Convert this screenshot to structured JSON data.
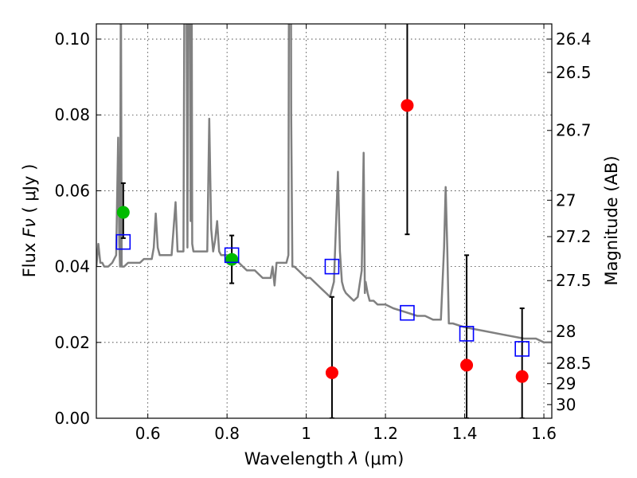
{
  "chart_data": {
    "type": "scatter",
    "xlabel": "Wavelength",
    "xlabel_symbol": "λ",
    "xlabel_unit": "(μm)",
    "ylabel": "Flux",
    "ylabel_symbol": "Fν",
    "ylabel_unit": "( μJy )",
    "ylabel_right": "Magnitude (AB)",
    "xlim": [
      0.47,
      1.62
    ],
    "ylim": [
      0.0,
      0.104
    ],
    "x_ticks": [
      0.6,
      0.8,
      1.0,
      1.2,
      1.4,
      1.6
    ],
    "x_tick_labels": [
      "0.6",
      "0.8",
      "1",
      "1.2",
      "1.4",
      "1.6"
    ],
    "y_ticks": [
      0.0,
      0.02,
      0.04,
      0.06,
      0.08,
      0.1
    ],
    "y_tick_labels": [
      "0.00",
      "0.02",
      "0.04",
      "0.06",
      "0.08",
      "0.10"
    ],
    "right_ticks": [
      {
        "label": "26.4",
        "flux": 0.1
      },
      {
        "label": "26.5",
        "flux": 0.0912
      },
      {
        "label": "26.7",
        "flux": 0.0759
      },
      {
        "label": "27",
        "flux": 0.0575
      },
      {
        "label": "27.2",
        "flux": 0.0479
      },
      {
        "label": "27.5",
        "flux": 0.0363
      },
      {
        "label": "28",
        "flux": 0.0229
      },
      {
        "label": "28.5",
        "flux": 0.0145
      },
      {
        "label": "29",
        "flux": 0.0091
      },
      {
        "label": "30",
        "flux": 0.0036
      }
    ],
    "grid": true,
    "colors": {
      "spectrum": "#808080",
      "red_points": "#ff0000",
      "green_points": "#00bb00",
      "model_squares": "#0000ff",
      "errorbars": "#000000"
    },
    "series": [
      {
        "kind": "line",
        "x": [
          0.47,
          0.475,
          0.48,
          0.485,
          0.49,
          0.5,
          0.51,
          0.515,
          0.52,
          0.525,
          0.528,
          0.53,
          0.532,
          0.534,
          0.54,
          0.55,
          0.56,
          0.57,
          0.58,
          0.59,
          0.6,
          0.61,
          0.615,
          0.62,
          0.625,
          0.63,
          0.64,
          0.65,
          0.66,
          0.665,
          0.67,
          0.675,
          0.68,
          0.69,
          0.695,
          0.7,
          0.705,
          0.708,
          0.71,
          0.712,
          0.715,
          0.72,
          0.725,
          0.73,
          0.74,
          0.75,
          0.755,
          0.76,
          0.765,
          0.77,
          0.775,
          0.78,
          0.785,
          0.79,
          0.8,
          0.81,
          0.82,
          0.83,
          0.84,
          0.85,
          0.86,
          0.87,
          0.88,
          0.89,
          0.9,
          0.91,
          0.915,
          0.92,
          0.925,
          0.93,
          0.94,
          0.95,
          0.955,
          0.958,
          0.96,
          0.962,
          0.965,
          0.97,
          0.98,
          0.99,
          1.0,
          1.01,
          1.02,
          1.03,
          1.04,
          1.05,
          1.06,
          1.07,
          1.08,
          1.085,
          1.09,
          1.095,
          1.1,
          1.11,
          1.12,
          1.13,
          1.14,
          1.145,
          1.148,
          1.15,
          1.155,
          1.16,
          1.17,
          1.18,
          1.2,
          1.22,
          1.25,
          1.28,
          1.3,
          1.32,
          1.34,
          1.348,
          1.352,
          1.356,
          1.36,
          1.37,
          1.4,
          1.45,
          1.5,
          1.55,
          1.58,
          1.6,
          1.62
        ],
        "y": [
          0.04,
          0.046,
          0.041,
          0.041,
          0.04,
          0.04,
          0.041,
          0.042,
          0.043,
          0.074,
          0.046,
          0.04,
          0.12,
          0.04,
          0.04,
          0.041,
          0.041,
          0.041,
          0.041,
          0.042,
          0.042,
          0.042,
          0.045,
          0.054,
          0.045,
          0.043,
          0.043,
          0.043,
          0.043,
          0.05,
          0.057,
          0.044,
          0.044,
          0.044,
          0.19,
          0.045,
          0.19,
          0.052,
          0.15,
          0.046,
          0.044,
          0.044,
          0.044,
          0.044,
          0.044,
          0.044,
          0.079,
          0.05,
          0.044,
          0.047,
          0.052,
          0.044,
          0.043,
          0.043,
          0.043,
          0.042,
          0.042,
          0.041,
          0.04,
          0.039,
          0.039,
          0.039,
          0.038,
          0.037,
          0.037,
          0.037,
          0.04,
          0.035,
          0.041,
          0.041,
          0.041,
          0.041,
          0.043,
          0.2,
          0.2,
          0.08,
          0.04,
          0.04,
          0.039,
          0.038,
          0.037,
          0.037,
          0.036,
          0.035,
          0.034,
          0.033,
          0.032,
          0.036,
          0.065,
          0.044,
          0.036,
          0.034,
          0.033,
          0.032,
          0.031,
          0.032,
          0.039,
          0.07,
          0.033,
          0.036,
          0.033,
          0.031,
          0.031,
          0.03,
          0.03,
          0.029,
          0.028,
          0.027,
          0.027,
          0.026,
          0.026,
          0.045,
          0.061,
          0.045,
          0.025,
          0.025,
          0.024,
          0.023,
          0.022,
          0.021,
          0.021,
          0.02,
          0.02
        ]
      },
      {
        "kind": "points",
        "marker": "circle",
        "color": "#ff0000",
        "x": [
          1.065,
          1.255,
          1.405,
          1.545
        ],
        "y": [
          0.012,
          0.0825,
          0.014,
          0.011
        ],
        "err_low": [
          0.012,
          0.034,
          0.014,
          0.011
        ],
        "err_high": [
          0.02,
          0.03,
          0.029,
          0.018
        ]
      },
      {
        "kind": "points",
        "marker": "circle",
        "color": "#00bb00",
        "x": [
          0.538,
          0.812
        ],
        "y": [
          0.0543,
          0.0419
        ],
        "err_low": [
          0.0068,
          0.0063
        ],
        "err_high": [
          0.0077,
          0.0063
        ]
      },
      {
        "kind": "points",
        "marker": "square",
        "color": "#0000ff",
        "x": [
          0.538,
          0.812,
          1.065,
          1.255,
          1.405,
          1.545
        ],
        "y": [
          0.0465,
          0.043,
          0.04,
          0.0278,
          0.0223,
          0.0183
        ]
      }
    ]
  }
}
